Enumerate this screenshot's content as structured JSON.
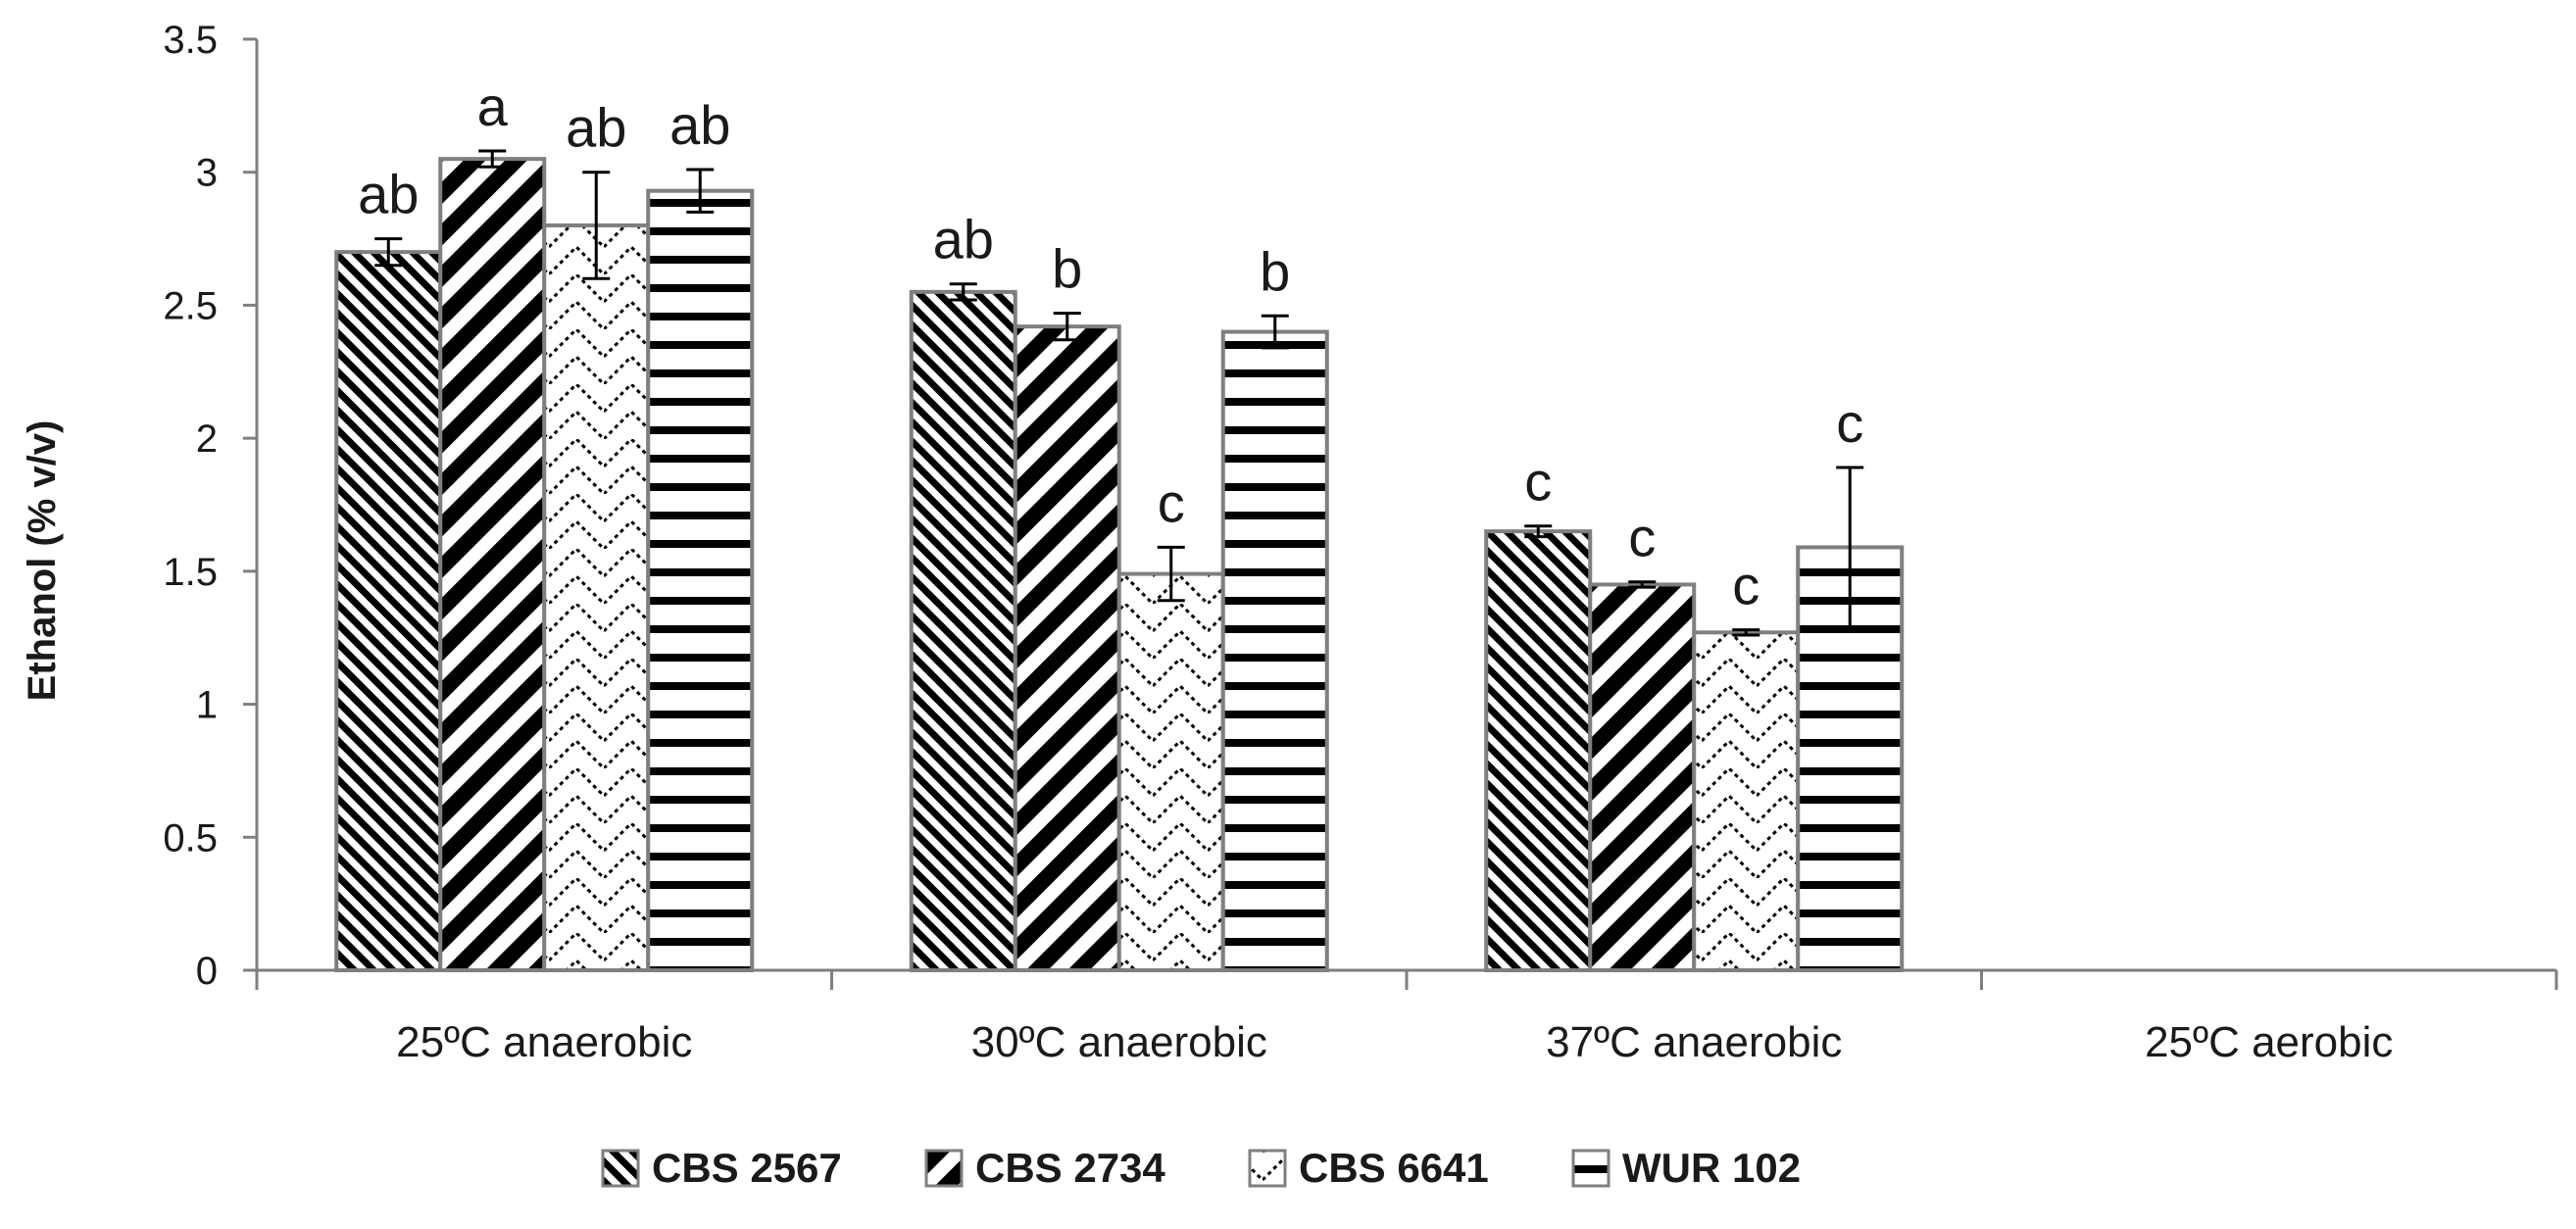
{
  "chart_data": {
    "type": "bar",
    "title": "",
    "xlabel": "",
    "ylabel": "Ethanol   (% v/v)",
    "ylim": [
      0,
      3.5
    ],
    "yticks": [
      "0",
      "0.5",
      "1",
      "1.5",
      "2",
      "2.5",
      "3",
      "3.5"
    ],
    "grid": false,
    "legend_position": "bottom",
    "categories": [
      "25ºC anaerobic",
      "30ºC anaerobic",
      "37ºC anaerobic",
      "25ºC aerobic"
    ],
    "series": [
      {
        "name": "CBS 2567",
        "pattern": "diag-fine",
        "values": [
          2.7,
          2.55,
          1.65,
          0
        ],
        "errors": [
          0.05,
          0.03,
          0.02,
          0
        ],
        "labels": [
          "ab",
          "ab",
          "c",
          ""
        ]
      },
      {
        "name": "CBS 2734",
        "pattern": "diag-coarse",
        "values": [
          3.05,
          2.42,
          1.45,
          0
        ],
        "errors": [
          0.03,
          0.05,
          0.01,
          0
        ],
        "labels": [
          "a",
          "b",
          "c",
          ""
        ]
      },
      {
        "name": "CBS 6641",
        "pattern": "zigzag",
        "values": [
          2.8,
          1.49,
          1.27,
          0
        ],
        "errors": [
          0.2,
          0.1,
          0.01,
          0
        ],
        "labels": [
          "ab",
          "c",
          "c",
          ""
        ]
      },
      {
        "name": "WUR 102",
        "pattern": "horizontal",
        "values": [
          2.93,
          2.4,
          1.59,
          0
        ],
        "errors": [
          0.08,
          0.06,
          0.3,
          0
        ],
        "labels": [
          "ab",
          "b",
          "c",
          ""
        ]
      }
    ]
  }
}
